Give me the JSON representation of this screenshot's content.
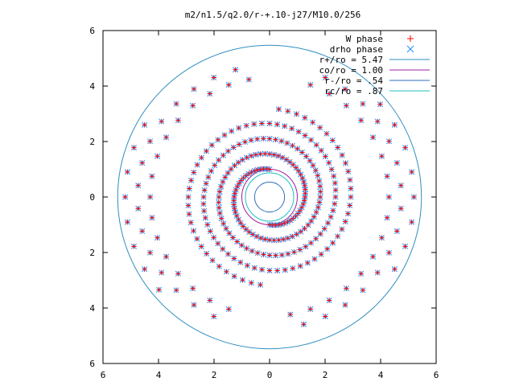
{
  "chart_data": {
    "type": "scatter",
    "title": "m2/n1.5/q2.0/r-+.10-j27/M10.0/256",
    "xlim": [
      -6,
      6
    ],
    "ylim": [
      -6,
      6
    ],
    "x_ticks": [
      -6,
      -4,
      -2,
      0,
      2,
      4,
      6
    ],
    "y_ticks": [
      -6,
      -4,
      -2,
      0,
      2,
      4,
      6
    ],
    "x_tick_labels": [
      "6",
      "4",
      "2",
      "0",
      "2",
      "4",
      "6"
    ],
    "y_tick_labels": [
      "6",
      "4",
      "2",
      "0",
      "2",
      "4",
      "6"
    ],
    "grid": false,
    "legend_position": "top-right",
    "arms": {
      "inner_start_radius": 1.0,
      "inner_spiral_pitch": 0.55,
      "inner_points_per_turn": 60,
      "inner_turns": 2.0,
      "outer_rows": [
        {
          "radius": 4.3,
          "angles_deg": [
            100,
            110,
            120,
            130,
            140,
            150,
            160,
            170,
            180,
            190,
            200,
            210,
            220,
            230,
            240,
            250
          ]
        },
        {
          "radius": 4.75,
          "angles_deg": [
            105,
            115,
            125,
            135,
            145,
            155,
            165,
            175,
            185,
            195,
            205,
            215,
            225,
            235,
            245
          ]
        },
        {
          "radius": 5.2,
          "angles_deg": [
            150,
            160,
            170,
            180,
            190,
            200,
            210,
            220
          ]
        }
      ]
    },
    "series": [
      {
        "name": "W phase",
        "marker": "plus",
        "color": "#ff0000"
      },
      {
        "name": "drho phase",
        "marker": "cross",
        "color": "#1e90ff"
      },
      {
        "name": "r+/ro = 5.47",
        "type": "circle",
        "radius": 5.47,
        "color": "#2f8fbf"
      },
      {
        "name": "co/ro = 1.00",
        "type": "circle",
        "radius": 1.0,
        "color": "#a020a0"
      },
      {
        "name": "r-/ro = .54",
        "type": "circle",
        "radius": 0.54,
        "color": "#2f6fbf"
      },
      {
        "name": "rc/ro = .87",
        "type": "circle",
        "radius": 0.87,
        "color": "#20c0c0"
      }
    ]
  }
}
